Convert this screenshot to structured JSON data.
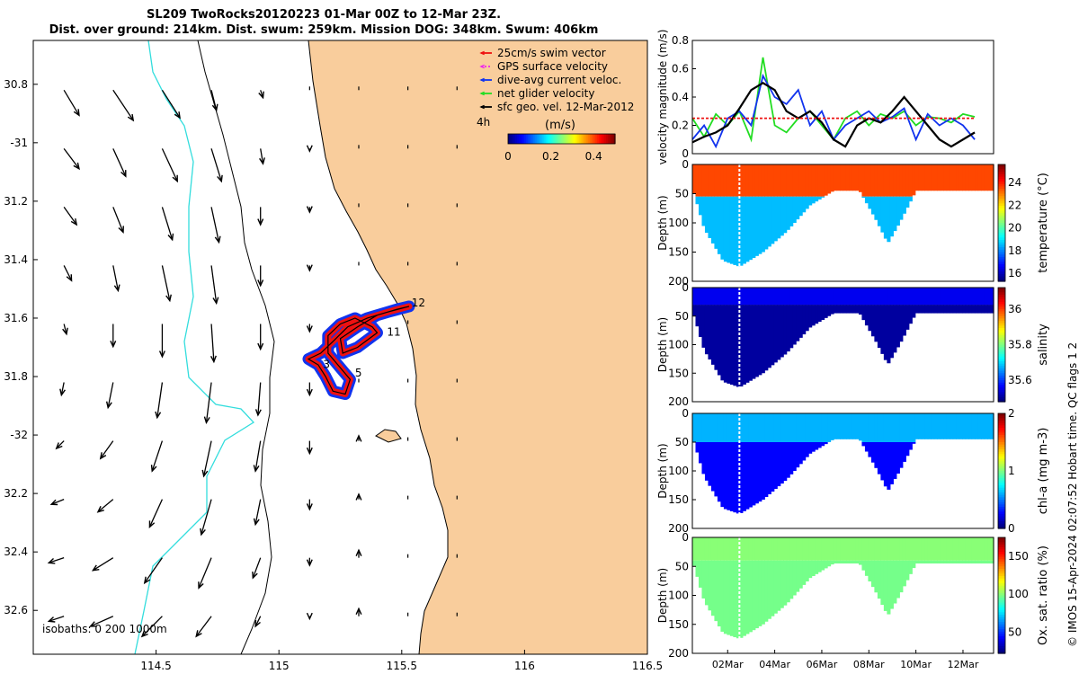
{
  "title": {
    "line1": "SL209 TwoRocks20120223 01-Mar 00Z to 12-Mar 23Z.",
    "line2": "Dist. over ground: 214km. Dist. swum: 259km. Mission DOG: 348km. Swum: 406km"
  },
  "credit": "© IMOS 15-Apr-2024 02:07:52 Hobart time. QC flags 1  2",
  "colors": {
    "land": "#F9CD9C",
    "track_red": "#EE1111",
    "track_blue": "#1133EE",
    "isobath_shallow": "#33DDDD",
    "net_velocity_green": "#22DD22"
  },
  "chart_data": [
    {
      "type": "map-quiver",
      "name": "glider-track-map",
      "xlim": [
        114.0,
        116.5
      ],
      "ylim": [
        -32.75,
        -30.65
      ],
      "xticks": [
        114.5,
        115,
        115.5,
        116,
        116.5
      ],
      "xtick_labels": [
        "114.5",
        "115",
        "115.5",
        "116",
        "116.5"
      ],
      "yticks": [
        -30.8,
        -31.0,
        -31.2,
        -31.4,
        -31.6,
        -31.8,
        -32.0,
        -32.2,
        -32.4,
        -32.6
      ],
      "ytick_labels": [
        "30.8",
        "-31",
        "31.2",
        "31.4",
        "31.6",
        "31.8",
        "-32",
        "32.2",
        "32.4",
        "32.6"
      ],
      "legend": [
        {
          "label": "25cm/s swim vector",
          "color": "#EE1111",
          "style": "arrow"
        },
        {
          "label": "GPS surface velocity",
          "color": "#EE22EE",
          "style": "dotted-arrow"
        },
        {
          "label": "dive-avg current veloc.",
          "color": "#1133EE",
          "style": "arrow"
        },
        {
          "label": "net glider velocity",
          "color": "#22DD22",
          "style": "arrow"
        },
        {
          "label": "sfc geo. vel. 12-Mar-2012",
          "color": "#000000",
          "style": "arrow"
        }
      ],
      "colorbar": {
        "note": "4h",
        "label": "(m/s)",
        "min": 0,
        "max": 0.5,
        "ticks": [
          0,
          0.2,
          0.4
        ],
        "tick_labels": [
          "0",
          "0.2",
          "0.4"
        ]
      },
      "isobaths_label": "isobaths: 0   200  1000m",
      "track_labels": [
        {
          "text": "3",
          "lon": 115.18,
          "lat": -31.77
        },
        {
          "text": "5",
          "lon": 115.31,
          "lat": -31.8
        },
        {
          "text": "11",
          "lon": 115.44,
          "lat": -31.66
        },
        {
          "text": "12",
          "lon": 115.54,
          "lat": -31.56
        }
      ],
      "track_lonlat": [
        [
          115.53,
          -31.56
        ],
        [
          115.44,
          -31.58
        ],
        [
          115.36,
          -31.6
        ],
        [
          115.28,
          -31.63
        ],
        [
          115.22,
          -31.68
        ],
        [
          115.17,
          -31.72
        ],
        [
          115.12,
          -31.74
        ],
        [
          115.16,
          -31.76
        ],
        [
          115.19,
          -31.8
        ],
        [
          115.22,
          -31.85
        ],
        [
          115.27,
          -31.86
        ],
        [
          115.29,
          -31.81
        ],
        [
          115.25,
          -31.77
        ],
        [
          115.2,
          -31.72
        ],
        [
          115.2,
          -31.66
        ],
        [
          115.25,
          -31.62
        ],
        [
          115.31,
          -31.6
        ],
        [
          115.38,
          -31.63
        ],
        [
          115.4,
          -31.65
        ],
        [
          115.32,
          -31.7
        ],
        [
          115.26,
          -31.72
        ],
        [
          115.25,
          -31.67
        ],
        [
          115.32,
          -31.63
        ],
        [
          115.4,
          -31.59
        ],
        [
          115.48,
          -31.57
        ],
        [
          115.53,
          -31.56
        ]
      ],
      "geo_velocity": {
        "lons": [
          114.125,
          114.325,
          114.525,
          114.725,
          114.925,
          115.125,
          115.325,
          115.525,
          115.725
        ],
        "lats": [
          -30.82,
          -31.02,
          -31.22,
          -31.42,
          -31.62,
          -31.82,
          -32.02,
          -32.22,
          -32.42,
          -32.62
        ],
        "grid": [
          [
            [
              0.06,
              -0.1
            ],
            [
              0.08,
              -0.12
            ],
            [
              0.07,
              -0.11
            ],
            [
              0.02,
              -0.08
            ],
            [
              0.01,
              -0.03
            ],
            [
              0.0,
              0.0
            ],
            [
              0.0,
              0.0
            ],
            [
              0.0,
              0.0
            ],
            [
              0.0,
              0.0
            ]
          ],
          [
            [
              0.06,
              -0.08
            ],
            [
              0.05,
              -0.11
            ],
            [
              0.06,
              -0.13
            ],
            [
              0.04,
              -0.13
            ],
            [
              0.01,
              -0.06
            ],
            [
              0.0,
              -0.01
            ],
            [
              0.0,
              0.0
            ],
            [
              0.0,
              0.0
            ],
            [
              0.0,
              0.0
            ]
          ],
          [
            [
              0.05,
              -0.07
            ],
            [
              0.04,
              -0.1
            ],
            [
              0.04,
              -0.13
            ],
            [
              0.03,
              -0.14
            ],
            [
              0.0,
              -0.07
            ],
            [
              0.0,
              -0.02
            ],
            [
              0.0,
              0.0
            ],
            [
              0.0,
              0.0
            ],
            [
              0.0,
              0.0
            ]
          ],
          [
            [
              0.03,
              -0.06
            ],
            [
              0.02,
              -0.1
            ],
            [
              0.03,
              -0.14
            ],
            [
              0.02,
              -0.15
            ],
            [
              0.0,
              -0.08
            ],
            [
              0.0,
              -0.02
            ],
            [
              0.0,
              0.0
            ],
            [
              0.0,
              0.0
            ],
            [
              0.0,
              0.0
            ]
          ],
          [
            [
              0.01,
              -0.04
            ],
            [
              0.0,
              -0.09
            ],
            [
              0.0,
              -0.13
            ],
            [
              0.01,
              -0.15
            ],
            [
              0.0,
              -0.1
            ],
            [
              0.0,
              -0.03
            ],
            [
              0.0,
              0.0
            ],
            [
              0.0,
              0.0
            ],
            [
              0.0,
              0.0
            ]
          ],
          [
            [
              -0.01,
              -0.05
            ],
            [
              -0.02,
              -0.1
            ],
            [
              -0.02,
              -0.14
            ],
            [
              -0.02,
              -0.16
            ],
            [
              -0.01,
              -0.13
            ],
            [
              0.0,
              -0.05
            ],
            [
              0.0,
              0.0
            ],
            [
              0.0,
              0.0
            ],
            [
              0.0,
              0.0
            ]
          ],
          [
            [
              -0.03,
              -0.03
            ],
            [
              -0.05,
              -0.07
            ],
            [
              -0.04,
              -0.12
            ],
            [
              -0.03,
              -0.14
            ],
            [
              -0.02,
              -0.12
            ],
            [
              0.0,
              -0.05
            ],
            [
              0.0,
              0.02
            ],
            [
              0.0,
              0.0
            ],
            [
              0.0,
              0.0
            ]
          ],
          [
            [
              -0.05,
              -0.02
            ],
            [
              -0.06,
              -0.05
            ],
            [
              -0.05,
              -0.11
            ],
            [
              -0.04,
              -0.14
            ],
            [
              -0.02,
              -0.1
            ],
            [
              0.0,
              -0.04
            ],
            [
              0.0,
              0.02
            ],
            [
              0.0,
              0.0
            ],
            [
              0.0,
              0.0
            ]
          ],
          [
            [
              -0.06,
              -0.02
            ],
            [
              -0.08,
              -0.05
            ],
            [
              -0.07,
              -0.1
            ],
            [
              -0.05,
              -0.12
            ],
            [
              -0.03,
              -0.08
            ],
            [
              0.0,
              -0.03
            ],
            [
              0.0,
              0.03
            ],
            [
              0.0,
              0.0
            ],
            [
              0.0,
              0.0
            ]
          ],
          [
            [
              -0.06,
              -0.02
            ],
            [
              -0.09,
              -0.04
            ],
            [
              -0.08,
              -0.08
            ],
            [
              -0.06,
              -0.08
            ],
            [
              -0.02,
              -0.04
            ],
            [
              0.0,
              -0.01
            ],
            [
              0.0,
              0.03
            ],
            [
              0.0,
              0.0
            ],
            [
              0.0,
              0.0
            ]
          ]
        ]
      }
    },
    {
      "type": "line",
      "name": "velocity-timeseries",
      "ylabel": "velocity magnitude (m/s)",
      "ylim": [
        0,
        0.8
      ],
      "yticks": [
        0,
        0.2,
        0.4,
        0.6,
        0.8
      ],
      "ytick_labels": [
        "0",
        "0.2",
        "0.4",
        "0.6",
        "0.8"
      ],
      "x_days": [
        0,
        0.5,
        1,
        1.5,
        2,
        2.5,
        3,
        3.5,
        4,
        4.5,
        5,
        5.5,
        6,
        6.5,
        7,
        7.5,
        8,
        8.5,
        9,
        9.5,
        10,
        10.5,
        11,
        11.5,
        12
      ],
      "series": [
        {
          "name": "net glider velocity",
          "color": "#22DD22",
          "values": [
            0.25,
            0.12,
            0.28,
            0.2,
            0.3,
            0.1,
            0.68,
            0.2,
            0.15,
            0.25,
            0.3,
            0.2,
            0.1,
            0.25,
            0.3,
            0.2,
            0.28,
            0.25,
            0.3,
            0.2,
            0.26,
            0.25,
            0.22,
            0.28,
            0.26
          ]
        },
        {
          "name": "dive-avg current veloc.",
          "color": "#1133EE",
          "values": [
            0.1,
            0.2,
            0.05,
            0.25,
            0.3,
            0.2,
            0.55,
            0.4,
            0.35,
            0.45,
            0.2,
            0.3,
            0.1,
            0.2,
            0.25,
            0.3,
            0.22,
            0.26,
            0.32,
            0.1,
            0.28,
            0.2,
            0.25,
            0.2,
            0.1
          ]
        },
        {
          "name": "sfc geo. vel.",
          "color": "#000000",
          "values": [
            0.08,
            0.12,
            0.15,
            0.2,
            0.32,
            0.45,
            0.5,
            0.45,
            0.3,
            0.25,
            0.3,
            0.22,
            0.1,
            0.05,
            0.2,
            0.25,
            0.22,
            0.3,
            0.4,
            0.3,
            0.2,
            0.1,
            0.05,
            0.1,
            0.15
          ]
        },
        {
          "name": "25cm/s swim vector",
          "color": "#EE1111",
          "values": [
            0.25,
            0.25,
            0.25,
            0.25,
            0.25,
            0.25,
            0.25,
            0.25,
            0.25,
            0.25,
            0.25,
            0.25,
            0.25,
            0.25,
            0.25,
            0.25,
            0.25,
            0.25,
            0.25,
            0.25,
            0.25,
            0.25,
            0.25,
            0.25,
            0.25
          ]
        }
      ]
    },
    {
      "type": "heatmap",
      "name": "temperature-section",
      "ylabel": "Depth (m)",
      "clabel": "temperature (°C)",
      "cmin": 15.3,
      "cmax": 25.6,
      "cticks": [
        16,
        18,
        20,
        22,
        24
      ],
      "ctick_labels": [
        "16",
        "18",
        "20",
        "22",
        "24"
      ],
      "yticks": [
        0,
        50,
        100,
        150,
        200
      ],
      "ytick_labels": [
        "0",
        "50",
        "100",
        "150",
        "200"
      ],
      "xlim_days": [
        0.5,
        13.3
      ],
      "max_depth_m": [
        [
          0.5,
          40
        ],
        [
          1.0,
          110
        ],
        [
          1.8,
          165
        ],
        [
          2.5,
          175
        ],
        [
          3.5,
          150
        ],
        [
          4.5,
          115
        ],
        [
          5.5,
          70
        ],
        [
          6.5,
          45
        ],
        [
          7.6,
          45
        ],
        [
          8.3,
          95
        ],
        [
          8.8,
          135
        ],
        [
          9.3,
          100
        ],
        [
          10.0,
          45
        ],
        [
          13.3,
          45
        ]
      ],
      "gap_day": 2.5,
      "surface_value": 23.6,
      "deep_value": 18.5,
      "transition_depth_m": 55
    },
    {
      "type": "heatmap",
      "name": "salinity-section",
      "ylabel": "Depth (m)",
      "clabel": "salinity",
      "cmin": 35.48,
      "cmax": 36.12,
      "cticks": [
        35.6,
        35.8,
        36
      ],
      "ctick_labels": [
        "35.6",
        "35.8",
        "36"
      ],
      "yticks": [
        0,
        50,
        100,
        150,
        200
      ],
      "ytick_labels": [
        "0",
        "50",
        "100",
        "150",
        "200"
      ],
      "xlim_days": [
        0.5,
        13.3
      ],
      "max_depth_m": [
        [
          0.5,
          40
        ],
        [
          1.0,
          110
        ],
        [
          1.8,
          165
        ],
        [
          2.5,
          175
        ],
        [
          3.5,
          150
        ],
        [
          4.5,
          115
        ],
        [
          5.5,
          70
        ],
        [
          6.5,
          45
        ],
        [
          7.6,
          45
        ],
        [
          8.3,
          95
        ],
        [
          8.8,
          135
        ],
        [
          9.3,
          100
        ],
        [
          10.0,
          45
        ],
        [
          13.3,
          45
        ]
      ],
      "gap_day": 2.5,
      "surface_value": 35.55,
      "deep_value": 35.5,
      "transition_depth_m": 30
    },
    {
      "type": "heatmap",
      "name": "chla-section",
      "ylabel": "Depth (m)",
      "clabel": "chl-a (mg m-3)",
      "cmin": 0,
      "cmax": 2,
      "cticks": [
        0,
        1,
        2
      ],
      "ctick_labels": [
        "0",
        "1",
        "2"
      ],
      "yticks": [
        0,
        50,
        100,
        150,
        200
      ],
      "ytick_labels": [
        "0",
        "50",
        "100",
        "150",
        "200"
      ],
      "xlim_days": [
        0.5,
        13.3
      ],
      "max_depth_m": [
        [
          0.5,
          40
        ],
        [
          1.0,
          110
        ],
        [
          1.8,
          165
        ],
        [
          2.5,
          175
        ],
        [
          3.5,
          150
        ],
        [
          4.5,
          115
        ],
        [
          5.5,
          70
        ],
        [
          6.5,
          45
        ],
        [
          7.6,
          45
        ],
        [
          8.3,
          95
        ],
        [
          8.8,
          135
        ],
        [
          9.3,
          100
        ],
        [
          10.0,
          45
        ],
        [
          13.3,
          45
        ]
      ],
      "gap_day": 2.5,
      "surface_value": 0.6,
      "deep_value": 0.25,
      "transition_depth_m": 50
    },
    {
      "type": "heatmap",
      "name": "oxygen-section",
      "ylabel": "Depth (m)",
      "clabel": "Ox. sat. ratio (%)",
      "cmin": 22,
      "cmax": 175,
      "cticks": [
        50,
        100,
        150
      ],
      "ctick_labels": [
        "50",
        "100",
        "150"
      ],
      "yticks": [
        0,
        50,
        100,
        150,
        200
      ],
      "ytick_labels": [
        "0",
        "50",
        "100",
        "150",
        "200"
      ],
      "xlim_days": [
        0.5,
        13.3
      ],
      "max_depth_m": [
        [
          0.5,
          40
        ],
        [
          1.0,
          110
        ],
        [
          1.8,
          165
        ],
        [
          2.5,
          175
        ],
        [
          3.5,
          150
        ],
        [
          4.5,
          115
        ],
        [
          5.5,
          70
        ],
        [
          6.5,
          45
        ],
        [
          7.6,
          45
        ],
        [
          8.3,
          95
        ],
        [
          8.8,
          135
        ],
        [
          9.3,
          100
        ],
        [
          10.0,
          45
        ],
        [
          13.3,
          45
        ]
      ],
      "gap_day": 2.5,
      "surface_value": 100,
      "deep_value": 97,
      "transition_depth_m": 40,
      "xticks_days": [
        2,
        4,
        6,
        8,
        10,
        12
      ],
      "xtick_labels": [
        "02Mar",
        "04Mar",
        "06Mar",
        "08Mar",
        "10Mar",
        "12Mar"
      ]
    }
  ]
}
